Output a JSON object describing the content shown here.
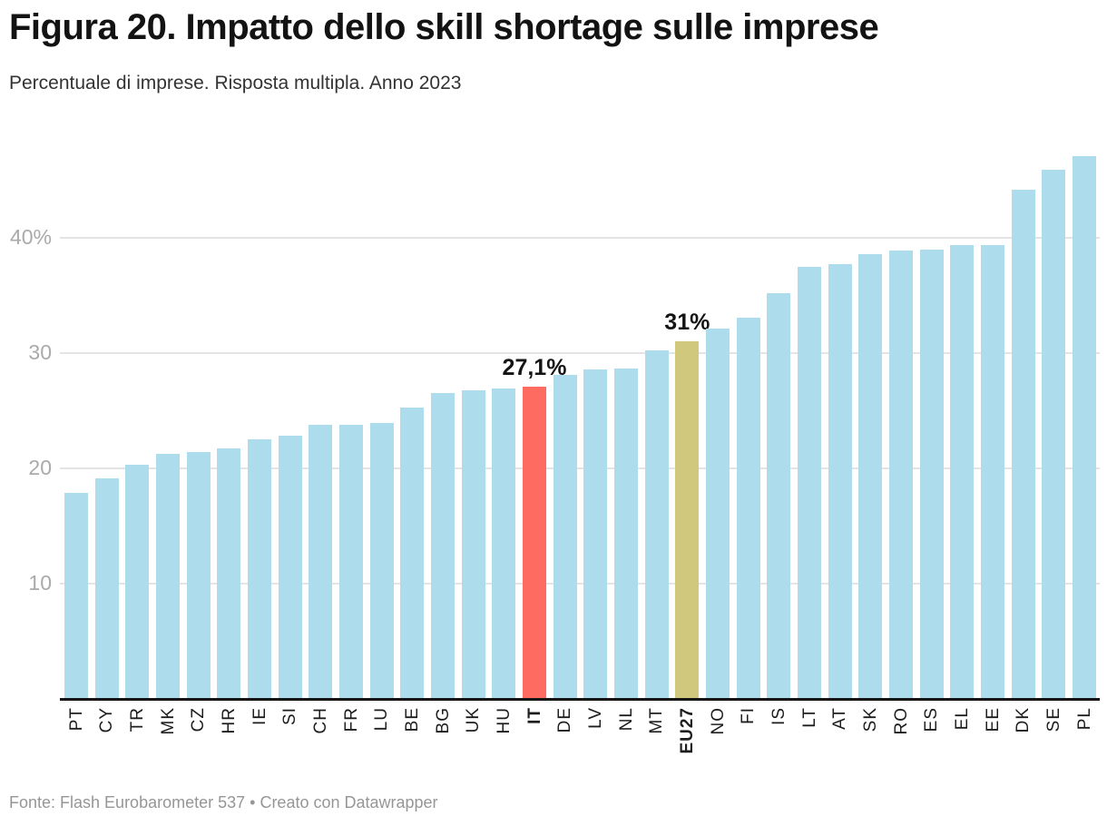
{
  "header": {
    "title": "Figura 20. Impatto dello skill shortage sulle imprese",
    "subtitle": "Percentuale di imprese. Risposta multipla. Anno 2023"
  },
  "footer": {
    "text": "Fonte: Flash Eurobarometer 537 • Creato con Datawrapper"
  },
  "colors": {
    "bar_default": "#addced",
    "bar_highlight_it": "#fd6b61",
    "bar_highlight_eu27": "#d0c97d",
    "gridline": "#e4e4e4",
    "axis_line": "#161616",
    "y_tick_label": "#aaaaaa",
    "x_tick_label": "#1d1d1d",
    "value_label": "#141414"
  },
  "chart_data": {
    "type": "bar",
    "title": "Figura 20. Impatto dello skill shortage sulle imprese",
    "subtitle": "Percentuale di imprese. Risposta multipla. Anno 2023",
    "xlabel": "",
    "ylabel": "",
    "ylim": [
      0,
      48
    ],
    "grid": "horizontal-only",
    "legend_position": "none",
    "categories": [
      "PT",
      "CY",
      "TR",
      "MK",
      "CZ",
      "HR",
      "IE",
      "SI",
      "CH",
      "FR",
      "LU",
      "BE",
      "BG",
      "UK",
      "HU",
      "IT",
      "DE",
      "LV",
      "NL",
      "MT",
      "EU27",
      "NO",
      "FI",
      "IS",
      "LT",
      "AT",
      "SK",
      "RO",
      "ES",
      "EL",
      "EE",
      "DK",
      "SE",
      "PL"
    ],
    "values": [
      17.9,
      19.1,
      20.3,
      21.3,
      21.4,
      21.7,
      22.5,
      22.8,
      23.8,
      23.8,
      23.9,
      25.3,
      26.5,
      26.8,
      26.9,
      27.1,
      28.1,
      28.6,
      28.7,
      30.2,
      31,
      32.1,
      33.1,
      35.2,
      37.5,
      37.7,
      38.6,
      38.9,
      39,
      39.4,
      39.4,
      44.2,
      45.9,
      47.1
    ],
    "yticks": [
      {
        "value": 10,
        "label": "10"
      },
      {
        "value": 20,
        "label": "20"
      },
      {
        "value": 30,
        "label": "30"
      },
      {
        "value": 40,
        "label": "40%"
      }
    ],
    "highlights": [
      {
        "category": "IT",
        "color": "#fd6b61",
        "annotation": "27,1%"
      },
      {
        "category": "EU27",
        "color": "#d0c97d",
        "annotation": "31%"
      }
    ],
    "bold_categories": [
      "IT",
      "EU27"
    ]
  }
}
